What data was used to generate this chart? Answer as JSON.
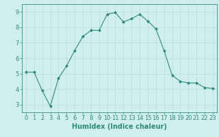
{
  "x": [
    0,
    1,
    2,
    3,
    4,
    5,
    6,
    7,
    8,
    9,
    10,
    11,
    12,
    13,
    14,
    15,
    16,
    17,
    18,
    19,
    20,
    21,
    22,
    23
  ],
  "y": [
    5.1,
    5.1,
    3.9,
    2.9,
    4.7,
    5.5,
    6.5,
    7.4,
    7.8,
    7.8,
    8.85,
    8.95,
    8.35,
    8.55,
    8.85,
    8.4,
    7.9,
    6.5,
    4.9,
    4.5,
    4.4,
    4.4,
    4.1,
    4.05
  ],
  "line_color": "#2e8b7a",
  "marker": "D",
  "marker_size": 2,
  "bg_color": "#d0eeee",
  "grid_color": "#b8dcdc",
  "xlabel": "Humidex (Indice chaleur)",
  "xlabel_fontsize": 7,
  "tick_fontsize": 6,
  "ylim": [
    2.5,
    9.5
  ],
  "xlim": [
    -0.5,
    23.5
  ],
  "yticks": [
    3,
    4,
    5,
    6,
    7,
    8,
    9
  ],
  "xticks": [
    0,
    1,
    2,
    3,
    4,
    5,
    6,
    7,
    8,
    9,
    10,
    11,
    12,
    13,
    14,
    15,
    16,
    17,
    18,
    19,
    20,
    21,
    22,
    23
  ]
}
